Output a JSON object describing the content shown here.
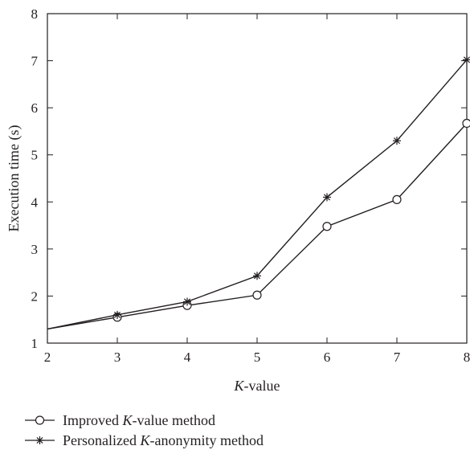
{
  "chart_data": {
    "type": "line",
    "title": "",
    "xlabel": {
      "italic": "K",
      "rest": "-value"
    },
    "ylabel": "Execution time (s)",
    "xlim": [
      2,
      8
    ],
    "ylim": [
      1,
      8
    ],
    "xticks": [
      "2",
      "3",
      "4",
      "5",
      "6",
      "7",
      "8"
    ],
    "yticks": [
      "1",
      "2",
      "3",
      "4",
      "5",
      "6",
      "7",
      "8"
    ],
    "grid": false,
    "legend_position": "bottom",
    "series": [
      {
        "name": "Improved K-value method",
        "name_parts": {
          "before": "Improved ",
          "italic": "K",
          "after": "-value method"
        },
        "marker": "circle",
        "color": "#231f20",
        "x": [
          2,
          3,
          4,
          5,
          6,
          7,
          8
        ],
        "y": [
          1.3,
          1.55,
          1.8,
          2.02,
          3.48,
          4.05,
          5.67
        ]
      },
      {
        "name": "Personalized K-anonymity method",
        "name_parts": {
          "before": "Personalized ",
          "italic": "K",
          "after": "-anonymity method"
        },
        "marker": "star",
        "color": "#231f20",
        "x": [
          2,
          3,
          4,
          5,
          6,
          7,
          8
        ],
        "y": [
          1.3,
          1.6,
          1.88,
          2.43,
          4.1,
          5.3,
          7.02
        ]
      }
    ]
  }
}
